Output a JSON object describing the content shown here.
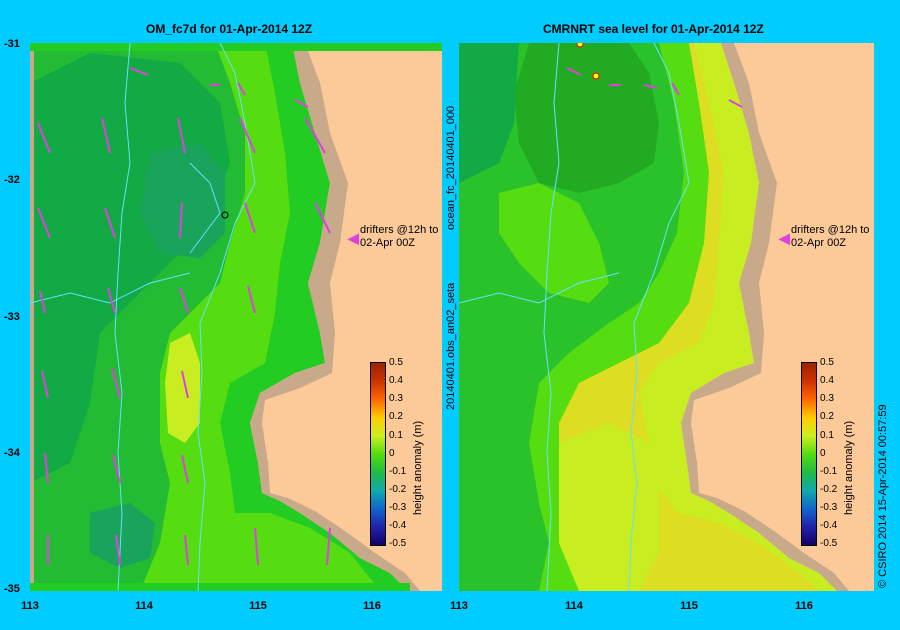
{
  "left_title": "OM_fc7d for 01-Apr-2014 12Z",
  "right_title": "CMRNRT sea level  for 01-Apr-2014 12Z",
  "y_ticks": [
    "-31",
    "-32",
    "-33",
    "-34",
    "-35"
  ],
  "x_ticks": [
    "113",
    "114",
    "115",
    "116"
  ],
  "right_x_ticks": [
    "113",
    "114",
    "115",
    "116"
  ],
  "side_label_top": "ocean_fc_20140401_000",
  "side_label_bottom": "20140401.obs_an02_seta",
  "drifters_line1": "drifters @12h to",
  "drifters_line2": "02-Apr 00Z",
  "colorbar_label": "height anomaly (m)",
  "colorbar_ticks": [
    "0.5",
    "0.4",
    "0.3",
    "0.2",
    "0.1",
    "0",
    "-0.1",
    "-0.2",
    "-0.3",
    "-0.4",
    "-0.5"
  ],
  "credit": "© CSIRO 2014   15-Apr-2014 00:57:59",
  "colors": {
    "background": "#00ccff",
    "land": "#fcc998",
    "shelf": "#c8a98a",
    "contour": "#66e0ff",
    "arrow": "#e040e0"
  }
}
